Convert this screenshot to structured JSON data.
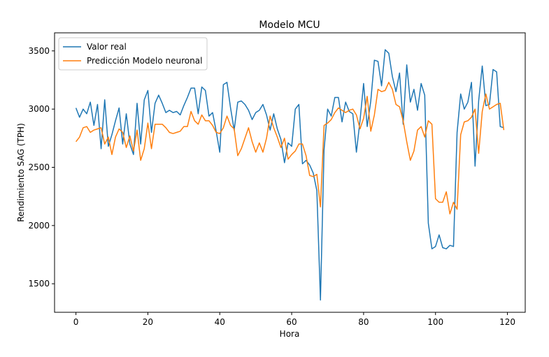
{
  "chart_data": {
    "type": "line",
    "title": "Modelo MCU",
    "xlabel": "Hora",
    "ylabel": "Rendimiento SAG (TPH)",
    "x": [
      0,
      1,
      2,
      3,
      4,
      5,
      6,
      7,
      8,
      9,
      10,
      11,
      12,
      13,
      14,
      15,
      16,
      17,
      18,
      19,
      20,
      21,
      22,
      23,
      24,
      25,
      26,
      27,
      28,
      29,
      30,
      31,
      32,
      33,
      34,
      35,
      36,
      37,
      38,
      39,
      40,
      41,
      42,
      43,
      44,
      45,
      46,
      47,
      48,
      49,
      50,
      51,
      52,
      53,
      54,
      55,
      56,
      57,
      58,
      59,
      60,
      61,
      62,
      63,
      64,
      65,
      66,
      67,
      68,
      69,
      70,
      71,
      72,
      73,
      74,
      75,
      76,
      77,
      78,
      79,
      80,
      81,
      82,
      83,
      84,
      85,
      86,
      87,
      88,
      89,
      90,
      91,
      92,
      93,
      94,
      95,
      96,
      97,
      98,
      99,
      100,
      101,
      102,
      103,
      104,
      105,
      106,
      107,
      108,
      109,
      110,
      111,
      112,
      113,
      114,
      115,
      116,
      117,
      118,
      119
    ],
    "series": [
      {
        "name": "Valor real",
        "color": "#1f77b4",
        "values": [
          3010,
          2930,
          3000,
          2960,
          3060,
          2860,
          3040,
          2660,
          3080,
          2680,
          2780,
          2900,
          3010,
          2700,
          2960,
          2700,
          2610,
          3050,
          2700,
          3080,
          3160,
          2800,
          3050,
          3120,
          3050,
          2970,
          2990,
          2970,
          2980,
          2950,
          3030,
          3100,
          3180,
          3180,
          2960,
          3190,
          3160,
          2940,
          2970,
          2810,
          2630,
          3210,
          3230,
          3010,
          2820,
          3060,
          3070,
          3040,
          2990,
          2910,
          2970,
          2990,
          3040,
          2950,
          2820,
          2960,
          2830,
          2740,
          2540,
          2710,
          2680,
          3000,
          3040,
          2530,
          2560,
          2520,
          2450,
          2300,
          1360,
          2650,
          3000,
          2940,
          3100,
          3100,
          2890,
          3060,
          2980,
          2960,
          2630,
          2900,
          3220,
          2850,
          3070,
          3420,
          3410,
          3200,
          3510,
          3480,
          3280,
          3150,
          3310,
          2870,
          3380,
          3060,
          3170,
          2990,
          3220,
          3120,
          2020,
          1800,
          1820,
          1920,
          1810,
          1800,
          1830,
          1820,
          2800,
          3130,
          3000,
          3060,
          3230,
          2510,
          3070,
          3370,
          3030,
          3040,
          3340,
          3320,
          2850,
          2840
        ]
      },
      {
        "name": "Predicción Modelo neuronal",
        "color": "#ff7f0e",
        "values": [
          2720,
          2760,
          2840,
          2850,
          2800,
          2820,
          2830,
          2840,
          2700,
          2760,
          2610,
          2760,
          2830,
          2800,
          2670,
          2770,
          2640,
          2820,
          2560,
          2660,
          2880,
          2660,
          2870,
          2870,
          2870,
          2840,
          2800,
          2790,
          2800,
          2810,
          2850,
          2850,
          2980,
          2900,
          2870,
          2950,
          2900,
          2900,
          2860,
          2800,
          2790,
          2840,
          2940,
          2860,
          2830,
          2600,
          2660,
          2750,
          2840,
          2720,
          2630,
          2710,
          2630,
          2750,
          2940,
          2840,
          2760,
          2670,
          2750,
          2570,
          2610,
          2640,
          2700,
          2700,
          2600,
          2430,
          2420,
          2440,
          2160,
          2860,
          2880,
          2910,
          2970,
          3010,
          2990,
          2970,
          2990,
          3000,
          2950,
          2830,
          2920,
          3110,
          2810,
          2950,
          3170,
          3150,
          3160,
          3230,
          3170,
          3040,
          3020,
          2900,
          2720,
          2560,
          2640,
          2820,
          2850,
          2760,
          2900,
          2870,
          2230,
          2200,
          2200,
          2290,
          2100,
          2200,
          2140,
          2780,
          2890,
          2900,
          2930,
          3000,
          2620,
          2980,
          3130,
          3000,
          3020,
          3040,
          3050,
          2820
        ]
      }
    ],
    "xlim": [
      -5.95,
      124.95
    ],
    "ylim": [
      1255,
      3655
    ],
    "xticks": [
      0,
      20,
      40,
      60,
      80,
      100,
      120
    ],
    "yticks": [
      1500,
      2000,
      2500,
      3000,
      3500
    ],
    "legend": "upper left",
    "grid": false
  }
}
